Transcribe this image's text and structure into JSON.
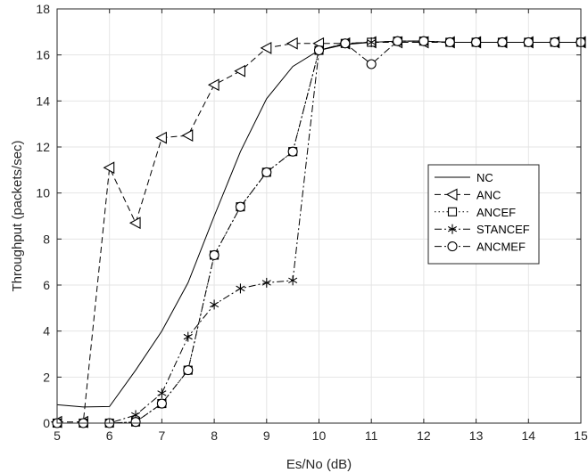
{
  "chart_data": {
    "type": "line",
    "title": "",
    "xlabel": "Es/No (dB)",
    "ylabel": "Throughput (packets/sec)",
    "xlim": [
      5,
      15
    ],
    "ylim": [
      0,
      18
    ],
    "xticks": [
      5,
      6,
      7,
      8,
      9,
      10,
      11,
      12,
      13,
      14,
      15
    ],
    "yticks": [
      0,
      2,
      4,
      6,
      8,
      10,
      12,
      14,
      16,
      18
    ],
    "grid": true,
    "legend_position": "center-right",
    "x": [
      5,
      5.5,
      6,
      6.5,
      7,
      7.5,
      8,
      8.5,
      9,
      9.5,
      10,
      10.5,
      11,
      11.5,
      12,
      12.5,
      13,
      13.5,
      14,
      14.5,
      15
    ],
    "series": [
      {
        "name": "NC",
        "style": "solid",
        "marker": "none",
        "values": [
          0.8,
          0.7,
          0.72,
          2.3,
          4.0,
          6.1,
          9.0,
          11.8,
          14.1,
          15.5,
          16.2,
          16.45,
          16.55,
          16.6,
          16.6,
          16.55,
          16.55,
          16.55,
          16.55,
          16.55,
          16.55
        ]
      },
      {
        "name": "ANC",
        "style": "dashed",
        "marker": "triangle-left",
        "values": [
          0.05,
          0.05,
          11.1,
          8.7,
          12.4,
          12.5,
          14.7,
          15.3,
          16.3,
          16.5,
          16.5,
          16.5,
          16.55,
          16.55,
          16.55,
          16.55,
          16.55,
          16.55,
          16.55,
          16.55,
          16.55
        ]
      },
      {
        "name": "ANCEF",
        "style": "dotted",
        "marker": "square",
        "values": [
          0.0,
          0.0,
          0.0,
          0.05,
          0.85,
          2.3,
          7.3,
          9.4,
          10.9,
          11.8,
          16.2,
          16.5,
          16.55,
          16.6,
          16.6,
          16.55,
          16.55,
          16.55,
          16.55,
          16.55,
          16.55
        ]
      },
      {
        "name": "STANCEF",
        "style": "dashdot",
        "marker": "asterisk",
        "values": [
          0.0,
          0.0,
          0.0,
          0.35,
          1.3,
          3.75,
          5.15,
          5.85,
          6.1,
          6.2,
          16.2,
          16.5,
          16.55,
          16.6,
          16.6,
          16.55,
          16.55,
          16.55,
          16.55,
          16.55,
          16.55
        ]
      },
      {
        "name": "ANCMEF",
        "style": "dashdot",
        "marker": "circle",
        "values": [
          0.0,
          0.0,
          0.0,
          0.05,
          0.85,
          2.3,
          7.3,
          9.4,
          10.9,
          11.8,
          16.2,
          16.5,
          15.6,
          16.6,
          16.6,
          16.55,
          16.55,
          16.55,
          16.55,
          16.55,
          16.55
        ]
      }
    ]
  }
}
